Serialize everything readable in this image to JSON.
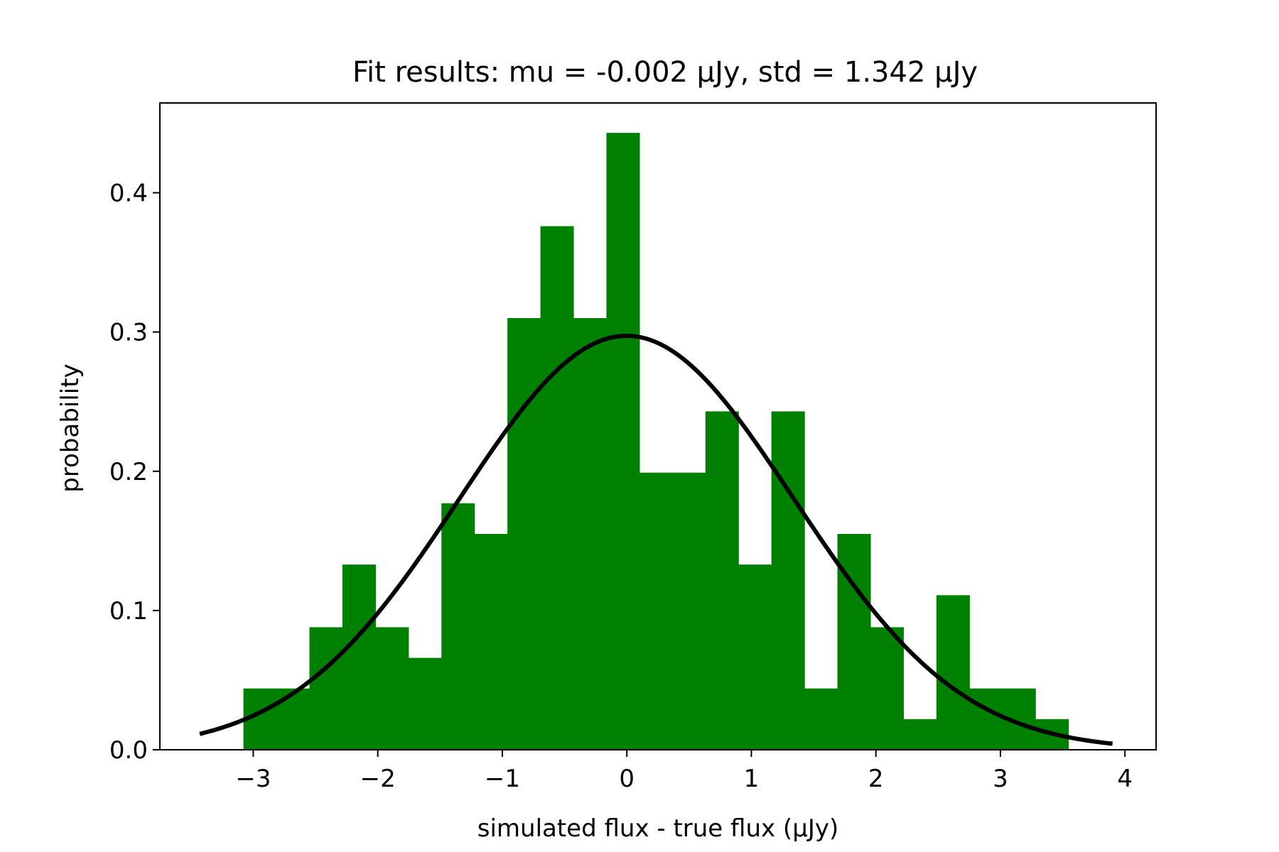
{
  "chart_data": {
    "type": "bar",
    "title": "Fit results: mu = -0.002 μJy,  std = 1.342 μJy",
    "xlabel": "simulated flux - true flux (μJy)",
    "ylabel": "probability",
    "xlim": [
      -3.75,
      4.25
    ],
    "ylim": [
      0,
      0.4645
    ],
    "xticks": [
      -3,
      -2,
      -1,
      0,
      1,
      2,
      3,
      4
    ],
    "xtick_labels": [
      "−3",
      "−2",
      "−1",
      "0",
      "1",
      "2",
      "3",
      "4"
    ],
    "yticks": [
      0.0,
      0.1,
      0.2,
      0.3,
      0.4
    ],
    "ytick_labels": [
      "0.0",
      "0.1",
      "0.2",
      "0.3",
      "0.4"
    ],
    "grid": false,
    "bar_color": "#008000",
    "bins": [
      {
        "x0": -3.079,
        "x1": -2.814,
        "value": 0.044
      },
      {
        "x0": -2.814,
        "x1": -2.549,
        "value": 0.044
      },
      {
        "x0": -2.549,
        "x1": -2.284,
        "value": 0.088
      },
      {
        "x0": -2.284,
        "x1": -2.019,
        "value": 0.133
      },
      {
        "x0": -2.019,
        "x1": -1.754,
        "value": 0.088
      },
      {
        "x0": -1.754,
        "x1": -1.489,
        "value": 0.066
      },
      {
        "x0": -1.489,
        "x1": -1.224,
        "value": 0.177
      },
      {
        "x0": -1.224,
        "x1": -0.959,
        "value": 0.155
      },
      {
        "x0": -0.959,
        "x1": -0.694,
        "value": 0.31
      },
      {
        "x0": -0.694,
        "x1": -0.429,
        "value": 0.376
      },
      {
        "x0": -0.429,
        "x1": -0.164,
        "value": 0.31
      },
      {
        "x0": -0.164,
        "x1": 0.101,
        "value": 0.443
      },
      {
        "x0": 0.101,
        "x1": 0.366,
        "value": 0.199
      },
      {
        "x0": 0.366,
        "x1": 0.631,
        "value": 0.199
      },
      {
        "x0": 0.631,
        "x1": 0.896,
        "value": 0.243
      },
      {
        "x0": 0.896,
        "x1": 1.161,
        "value": 0.133
      },
      {
        "x0": 1.161,
        "x1": 1.426,
        "value": 0.243
      },
      {
        "x0": 1.426,
        "x1": 1.691,
        "value": 0.044
      },
      {
        "x0": 1.691,
        "x1": 1.956,
        "value": 0.155
      },
      {
        "x0": 1.956,
        "x1": 2.221,
        "value": 0.088
      },
      {
        "x0": 2.221,
        "x1": 2.486,
        "value": 0.022
      },
      {
        "x0": 2.486,
        "x1": 2.751,
        "value": 0.111
      },
      {
        "x0": 2.751,
        "x1": 3.016,
        "value": 0.044
      },
      {
        "x0": 3.016,
        "x1": 3.281,
        "value": 0.044
      },
      {
        "x0": 3.281,
        "x1": 3.546,
        "value": 0.022
      }
    ],
    "fit": {
      "mu": -0.002,
      "std": 1.342,
      "x_range": [
        -3.43,
        3.9
      ],
      "color": "#000000"
    }
  }
}
